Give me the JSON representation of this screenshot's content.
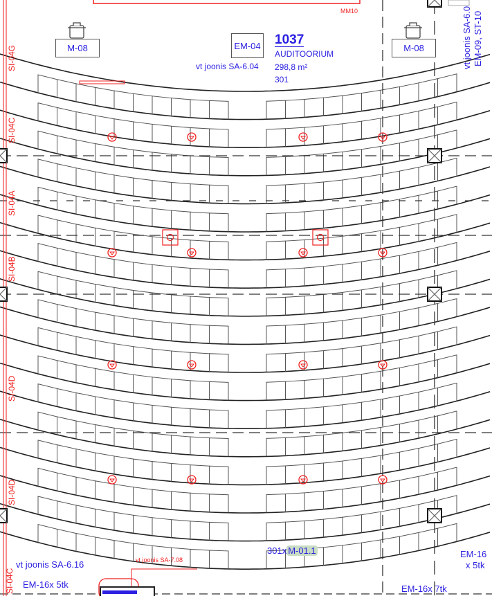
{
  "room": {
    "number": "1037",
    "name": "AUDITOORIUM",
    "area": "298,8 m²",
    "seats": "301",
    "reference": "vt joonis SA-6.04"
  },
  "top_label": "MM10",
  "equipment": {
    "left_unit": "M-08",
    "right_unit": "M-08",
    "center_unit": "EM-04"
  },
  "right_vertical_notes": [
    "vt joonis SA-6.0",
    "EM-09, ST-10"
  ],
  "section_labels": [
    "SI-04G",
    "SI-04C",
    "SI-04A",
    "SI-04B",
    "SI-04D",
    "SI-04D",
    "SI-04C"
  ],
  "bottom": {
    "seat_count_prefix": "301x",
    "seat_type": "M-01.1",
    "left_reference": "vt joonis SA-6.16",
    "left_em": "EM-16x 5tk",
    "red_reference": "vt joonis SA-7.08",
    "right_em": "EM-16x 7tk",
    "far_right_em_line1": "EM-16",
    "far_right_em_line2": "x 5tk"
  },
  "colors": {
    "annotation_blue": "#2a1fe0",
    "markup_red": "#f02020",
    "linework": "#222222",
    "highlight_green": "#c9dcc4"
  },
  "icons": [
    "smoke-detector-icon",
    "speaker-box-icon",
    "column-x-icon",
    "pot-icon"
  ]
}
